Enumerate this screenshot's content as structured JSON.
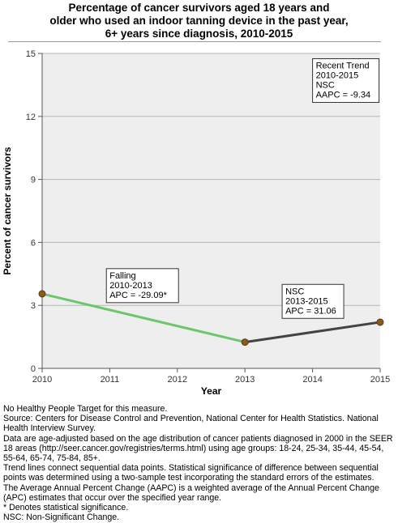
{
  "chart_data": {
    "type": "line",
    "title_lines": [
      "Percentage of cancer survivors aged 18 years and",
      "older who used an indoor tanning device in the past year,",
      "6+ years since diagnosis,  2010-2015"
    ],
    "xlabel": "Year",
    "ylabel": "Percent of cancer survivors",
    "xlim": [
      2010,
      2015
    ],
    "ylim": [
      0,
      15
    ],
    "x_ticks": [
      2010,
      2011,
      2012,
      2013,
      2014,
      2015
    ],
    "y_ticks": [
      0,
      3,
      6,
      9,
      12,
      15
    ],
    "grid": "horizontal",
    "points": [
      {
        "x": 2010,
        "y": 3.55
      },
      {
        "x": 2013,
        "y": 1.25
      },
      {
        "x": 2015,
        "y": 2.2
      }
    ],
    "segments": [
      {
        "from": 2010,
        "to": 2013,
        "color": "#6cc66c"
      },
      {
        "from": 2013,
        "to": 2015,
        "color": "#444444"
      }
    ],
    "point_color": "#8b5a1e",
    "plot_background": "#eeeeee",
    "annotations": [
      {
        "lines": [
          "Falling",
          "2010-2013",
          "APC = -29.09*"
        ],
        "anchor_x": 2010.95,
        "anchor_y": 4.75
      },
      {
        "lines": [
          "NSC",
          "2013-2015",
          "APC = 31.06"
        ],
        "anchor_x": 2013.55,
        "anchor_y": 4.0
      },
      {
        "lines": [
          "Recent Trend",
          "2010-2015",
          "NSC",
          "AAPC = -9.34"
        ],
        "anchor_x": 2014.0,
        "anchor_y": 14.75
      }
    ]
  },
  "footnotes": [
    "No Healthy People Target for this measure.",
    "Source: Centers for Disease Control and Prevention, National Center for Health Statistics. National Health Interview Survey.",
    "Data are age-adjusted based on the age distribution of cancer patients diagnosed in 2000 in the SEER 18 areas (http://seer.cancer.gov/registries/terms.html) using age groups: 18-24, 25-34, 35-44, 45-54, 55-64, 65-74, 75-84, 85+.",
    "Trend lines connect sequential data points. Statistical significance of difference between sequential points was determined using a two-sample test incorporating the standard errors of the estimates.",
    "The Average Annual Percent Change (AAPC) is a weighted average of the Annual Percent Change (APC) estimates that occur over the specified year range.",
    "* Denotes statistical significance.",
    "NSC: Non-Significant Change."
  ]
}
